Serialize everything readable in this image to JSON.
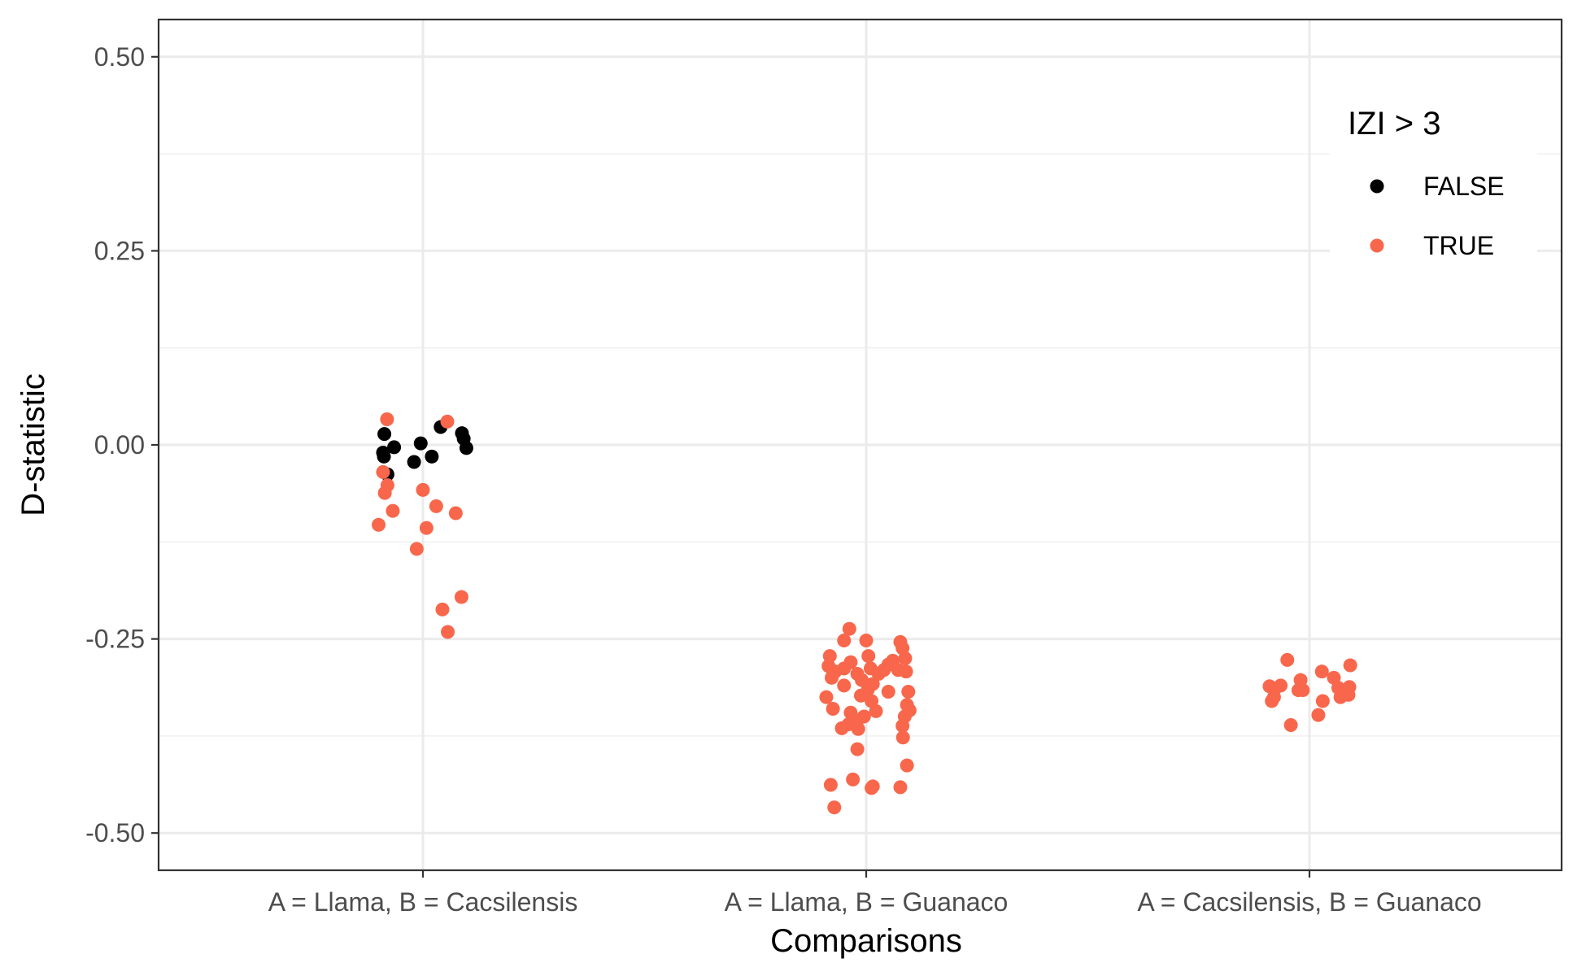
{
  "chart_data": {
    "type": "scatter",
    "title": "",
    "xlabel": "Comparisons",
    "ylabel": "D-statistic",
    "ylim": [
      -0.548,
      0.548
    ],
    "yticks": [
      "0.50",
      "0.25",
      "0.00",
      "-0.25",
      "-0.50"
    ],
    "ytick_values": [
      0.5,
      0.25,
      0,
      -0.25,
      -0.5
    ],
    "categories": [
      "A = Llama, B = Cacsilensis",
      "A = Llama, B = Guanaco",
      "A = Cacsilensis, B = Guanaco"
    ],
    "grid": true,
    "legend": {
      "title": "IZI > 3",
      "position": "top-right",
      "entries": [
        {
          "label": "FALSE",
          "color": "#000000"
        },
        {
          "label": "TRUE",
          "color": "#F8674C"
        }
      ]
    },
    "series": [
      {
        "name": "FALSE",
        "color": "#000000",
        "points": [
          {
            "category": "A = Llama, B = Cacsilensis",
            "jitter": -0.09,
            "y": -0.01
          },
          {
            "category": "A = Llama, B = Cacsilensis",
            "jitter": -0.088,
            "y": -0.015
          },
          {
            "category": "A = Llama, B = Cacsilensis",
            "jitter": -0.087,
            "y": 0.014
          },
          {
            "category": "A = Llama, B = Cacsilensis",
            "jitter": -0.08,
            "y": -0.038
          },
          {
            "category": "A = Llama, B = Cacsilensis",
            "jitter": -0.065,
            "y": -0.003
          },
          {
            "category": "A = Llama, B = Cacsilensis",
            "jitter": -0.02,
            "y": -0.022
          },
          {
            "category": "A = Llama, B = Cacsilensis",
            "jitter": -0.005,
            "y": 0.002
          },
          {
            "category": "A = Llama, B = Cacsilensis",
            "jitter": 0.02,
            "y": -0.015
          },
          {
            "category": "A = Llama, B = Cacsilensis",
            "jitter": 0.04,
            "y": 0.023
          },
          {
            "category": "A = Llama, B = Cacsilensis",
            "jitter": 0.088,
            "y": 0.015
          },
          {
            "category": "A = Llama, B = Cacsilensis",
            "jitter": 0.092,
            "y": 0.008
          },
          {
            "category": "A = Llama, B = Cacsilensis",
            "jitter": 0.098,
            "y": -0.004
          }
        ]
      },
      {
        "name": "TRUE",
        "color": "#F8674C",
        "points": [
          {
            "category": "A = Llama, B = Cacsilensis",
            "jitter": -0.081,
            "y": 0.033
          },
          {
            "category": "A = Llama, B = Cacsilensis",
            "jitter": 0.055,
            "y": 0.03
          },
          {
            "category": "A = Llama, B = Cacsilensis",
            "jitter": -0.09,
            "y": -0.035
          },
          {
            "category": "A = Llama, B = Cacsilensis",
            "jitter": -0.08,
            "y": -0.052
          },
          {
            "category": "A = Llama, B = Cacsilensis",
            "jitter": -0.086,
            "y": -0.062
          },
          {
            "category": "A = Llama, B = Cacsilensis",
            "jitter": -0.068,
            "y": -0.085
          },
          {
            "category": "A = Llama, B = Cacsilensis",
            "jitter": -0.1,
            "y": -0.103
          },
          {
            "category": "A = Llama, B = Cacsilensis",
            "jitter": 0.0,
            "y": -0.058
          },
          {
            "category": "A = Llama, B = Cacsilensis",
            "jitter": 0.03,
            "y": -0.079
          },
          {
            "category": "A = Llama, B = Cacsilensis",
            "jitter": 0.008,
            "y": -0.107
          },
          {
            "category": "A = Llama, B = Cacsilensis",
            "jitter": -0.014,
            "y": -0.134
          },
          {
            "category": "A = Llama, B = Cacsilensis",
            "jitter": 0.074,
            "y": -0.088
          },
          {
            "category": "A = Llama, B = Cacsilensis",
            "jitter": 0.087,
            "y": -0.196
          },
          {
            "category": "A = Llama, B = Cacsilensis",
            "jitter": 0.044,
            "y": -0.212
          },
          {
            "category": "A = Llama, B = Cacsilensis",
            "jitter": 0.056,
            "y": -0.241
          },
          {
            "category": "A = Llama, B = Guanaco",
            "jitter": -0.038,
            "y": -0.237
          },
          {
            "category": "A = Llama, B = Guanaco",
            "jitter": -0.05,
            "y": -0.252
          },
          {
            "category": "A = Llama, B = Guanaco",
            "jitter": 0.0,
            "y": -0.252
          },
          {
            "category": "A = Llama, B = Guanaco",
            "jitter": 0.077,
            "y": -0.254
          },
          {
            "category": "A = Llama, B = Guanaco",
            "jitter": 0.082,
            "y": -0.262
          },
          {
            "category": "A = Llama, B = Guanaco",
            "jitter": -0.082,
            "y": -0.272
          },
          {
            "category": "A = Llama, B = Guanaco",
            "jitter": 0.005,
            "y": -0.272
          },
          {
            "category": "A = Llama, B = Guanaco",
            "jitter": 0.088,
            "y": -0.275
          },
          {
            "category": "A = Llama, B = Guanaco",
            "jitter": 0.06,
            "y": -0.278
          },
          {
            "category": "A = Llama, B = Guanaco",
            "jitter": -0.035,
            "y": -0.28
          },
          {
            "category": "A = Llama, B = Guanaco",
            "jitter": 0.05,
            "y": -0.283
          },
          {
            "category": "A = Llama, B = Guanaco",
            "jitter": -0.085,
            "y": -0.285
          },
          {
            "category": "A = Llama, B = Guanaco",
            "jitter": -0.05,
            "y": -0.288
          },
          {
            "category": "A = Llama, B = Guanaco",
            "jitter": 0.01,
            "y": -0.288
          },
          {
            "category": "A = Llama, B = Guanaco",
            "jitter": 0.04,
            "y": -0.29
          },
          {
            "category": "A = Llama, B = Guanaco",
            "jitter": 0.072,
            "y": -0.29
          },
          {
            "category": "A = Llama, B = Guanaco",
            "jitter": -0.07,
            "y": -0.292
          },
          {
            "category": "A = Llama, B = Guanaco",
            "jitter": 0.09,
            "y": -0.292
          },
          {
            "category": "A = Llama, B = Guanaco",
            "jitter": -0.02,
            "y": -0.295
          },
          {
            "category": "A = Llama, B = Guanaco",
            "jitter": 0.028,
            "y": -0.295
          },
          {
            "category": "A = Llama, B = Guanaco",
            "jitter": -0.078,
            "y": -0.3
          },
          {
            "category": "A = Llama, B = Guanaco",
            "jitter": -0.01,
            "y": -0.303
          },
          {
            "category": "A = Llama, B = Guanaco",
            "jitter": 0.015,
            "y": -0.308
          },
          {
            "category": "A = Llama, B = Guanaco",
            "jitter": -0.05,
            "y": -0.31
          },
          {
            "category": "A = Llama, B = Guanaco",
            "jitter": 0.004,
            "y": -0.315
          },
          {
            "category": "A = Llama, B = Guanaco",
            "jitter": 0.05,
            "y": -0.318
          },
          {
            "category": "A = Llama, B = Guanaco",
            "jitter": 0.095,
            "y": -0.318
          },
          {
            "category": "A = Llama, B = Guanaco",
            "jitter": -0.012,
            "y": -0.323
          },
          {
            "category": "A = Llama, B = Guanaco",
            "jitter": -0.09,
            "y": -0.325
          },
          {
            "category": "A = Llama, B = Guanaco",
            "jitter": 0.012,
            "y": -0.33
          },
          {
            "category": "A = Llama, B = Guanaco",
            "jitter": 0.092,
            "y": -0.335
          },
          {
            "category": "A = Llama, B = Guanaco",
            "jitter": -0.075,
            "y": -0.34
          },
          {
            "category": "A = Llama, B = Guanaco",
            "jitter": -0.035,
            "y": -0.345
          },
          {
            "category": "A = Llama, B = Guanaco",
            "jitter": 0.022,
            "y": -0.343
          },
          {
            "category": "A = Llama, B = Guanaco",
            "jitter": 0.098,
            "y": -0.342
          },
          {
            "category": "A = Llama, B = Guanaco",
            "jitter": -0.005,
            "y": -0.35
          },
          {
            "category": "A = Llama, B = Guanaco",
            "jitter": -0.02,
            "y": -0.355
          },
          {
            "category": "A = Llama, B = Guanaco",
            "jitter": 0.087,
            "y": -0.35
          },
          {
            "category": "A = Llama, B = Guanaco",
            "jitter": -0.04,
            "y": -0.36
          },
          {
            "category": "A = Llama, B = Guanaco",
            "jitter": -0.055,
            "y": -0.365
          },
          {
            "category": "A = Llama, B = Guanaco",
            "jitter": -0.018,
            "y": -0.366
          },
          {
            "category": "A = Llama, B = Guanaco",
            "jitter": 0.082,
            "y": -0.362
          },
          {
            "category": "A = Llama, B = Guanaco",
            "jitter": 0.083,
            "y": -0.377
          },
          {
            "category": "A = Llama, B = Guanaco",
            "jitter": -0.02,
            "y": -0.392
          },
          {
            "category": "A = Llama, B = Guanaco",
            "jitter": 0.092,
            "y": -0.413
          },
          {
            "category": "A = Llama, B = Guanaco",
            "jitter": -0.08,
            "y": -0.438
          },
          {
            "category": "A = Llama, B = Guanaco",
            "jitter": -0.03,
            "y": -0.431
          },
          {
            "category": "A = Llama, B = Guanaco",
            "jitter": 0.012,
            "y": -0.442
          },
          {
            "category": "A = Llama, B = Guanaco",
            "jitter": 0.015,
            "y": -0.44
          },
          {
            "category": "A = Llama, B = Guanaco",
            "jitter": 0.077,
            "y": -0.441
          },
          {
            "category": "A = Llama, B = Guanaco",
            "jitter": -0.072,
            "y": -0.467
          },
          {
            "category": "A = Cacsilensis, B = Guanaco",
            "jitter": -0.05,
            "y": -0.277
          },
          {
            "category": "A = Cacsilensis, B = Guanaco",
            "jitter": 0.092,
            "y": -0.284
          },
          {
            "category": "A = Cacsilensis, B = Guanaco",
            "jitter": 0.028,
            "y": -0.292
          },
          {
            "category": "A = Cacsilensis, B = Guanaco",
            "jitter": 0.055,
            "y": -0.3
          },
          {
            "category": "A = Cacsilensis, B = Guanaco",
            "jitter": -0.02,
            "y": -0.303
          },
          {
            "category": "A = Cacsilensis, B = Guanaco",
            "jitter": -0.09,
            "y": -0.311
          },
          {
            "category": "A = Cacsilensis, B = Guanaco",
            "jitter": -0.065,
            "y": -0.31
          },
          {
            "category": "A = Cacsilensis, B = Guanaco",
            "jitter": -0.078,
            "y": -0.314
          },
          {
            "category": "A = Cacsilensis, B = Guanaco",
            "jitter": -0.025,
            "y": -0.316
          },
          {
            "category": "A = Cacsilensis, B = Guanaco",
            "jitter": -0.015,
            "y": -0.316
          },
          {
            "category": "A = Cacsilensis, B = Guanaco",
            "jitter": 0.065,
            "y": -0.313
          },
          {
            "category": "A = Cacsilensis, B = Guanaco",
            "jitter": 0.09,
            "y": -0.312
          },
          {
            "category": "A = Cacsilensis, B = Guanaco",
            "jitter": -0.08,
            "y": -0.325
          },
          {
            "category": "A = Cacsilensis, B = Guanaco",
            "jitter": 0.07,
            "y": -0.325
          },
          {
            "category": "A = Cacsilensis, B = Guanaco",
            "jitter": 0.088,
            "y": -0.322
          },
          {
            "category": "A = Cacsilensis, B = Guanaco",
            "jitter": -0.085,
            "y": -0.33
          },
          {
            "category": "A = Cacsilensis, B = Guanaco",
            "jitter": 0.03,
            "y": -0.33
          },
          {
            "category": "A = Cacsilensis, B = Guanaco",
            "jitter": 0.02,
            "y": -0.348
          },
          {
            "category": "A = Cacsilensis, B = Guanaco",
            "jitter": -0.042,
            "y": -0.361
          }
        ]
      }
    ]
  }
}
